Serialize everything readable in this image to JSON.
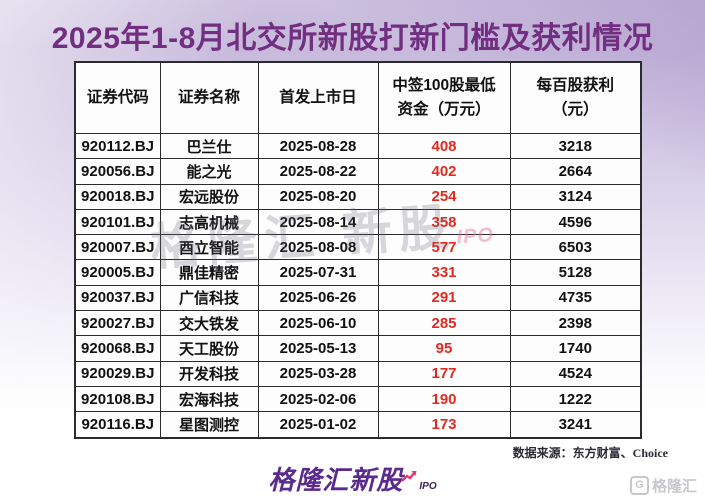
{
  "title": "2025年1-8月北交所新股打新门槛及获利情况",
  "chart_data": {
    "type": "table",
    "columns": [
      "证券代码",
      "证券名称",
      "首发上市日",
      "中签100股最低\n资金（万元）",
      "每百股获利\n（元）"
    ],
    "rows": [
      [
        "920112.BJ",
        "巴兰仕",
        "2025-08-28",
        "408",
        "3218"
      ],
      [
        "920056.BJ",
        "能之光",
        "2025-08-22",
        "402",
        "2664"
      ],
      [
        "920018.BJ",
        "宏远股份",
        "2025-08-20",
        "254",
        "3124"
      ],
      [
        "920101.BJ",
        "志高机械",
        "2025-08-14",
        "358",
        "4596"
      ],
      [
        "920007.BJ",
        "酉立智能",
        "2025-08-08",
        "577",
        "6503"
      ],
      [
        "920005.BJ",
        "鼎佳精密",
        "2025-07-31",
        "331",
        "5128"
      ],
      [
        "920037.BJ",
        "广信科技",
        "2025-06-26",
        "291",
        "4735"
      ],
      [
        "920027.BJ",
        "交大铁发",
        "2025-06-10",
        "285",
        "2398"
      ],
      [
        "920068.BJ",
        "天工股份",
        "2025-05-13",
        "95",
        "1740"
      ],
      [
        "920029.BJ",
        "开发科技",
        "2025-03-28",
        "177",
        "4524"
      ],
      [
        "920108.BJ",
        "宏海科技",
        "2025-02-06",
        "190",
        "1222"
      ],
      [
        "920116.BJ",
        "星图测控",
        "2025-01-02",
        "173",
        "3241"
      ]
    ],
    "highlight_column_index": 3,
    "highlight_color": "#e02a1f"
  },
  "watermark": {
    "text": "格隆汇 新股",
    "ipo": "IPO"
  },
  "source": "数据来源：东方财富、Choice",
  "footer_logo": {
    "brand": "格隆汇新股",
    "ipo": "IPO"
  },
  "corner_logo": {
    "icon_letter": "G",
    "text": "格隆汇"
  },
  "colors": {
    "title": "#722e80",
    "highlight": "#e02a1f",
    "brand_purple": "#5a2a8c",
    "arrow_pink": "#ea3a6c",
    "background_top": "#c7badb",
    "background_bottom": "#ffffff"
  }
}
